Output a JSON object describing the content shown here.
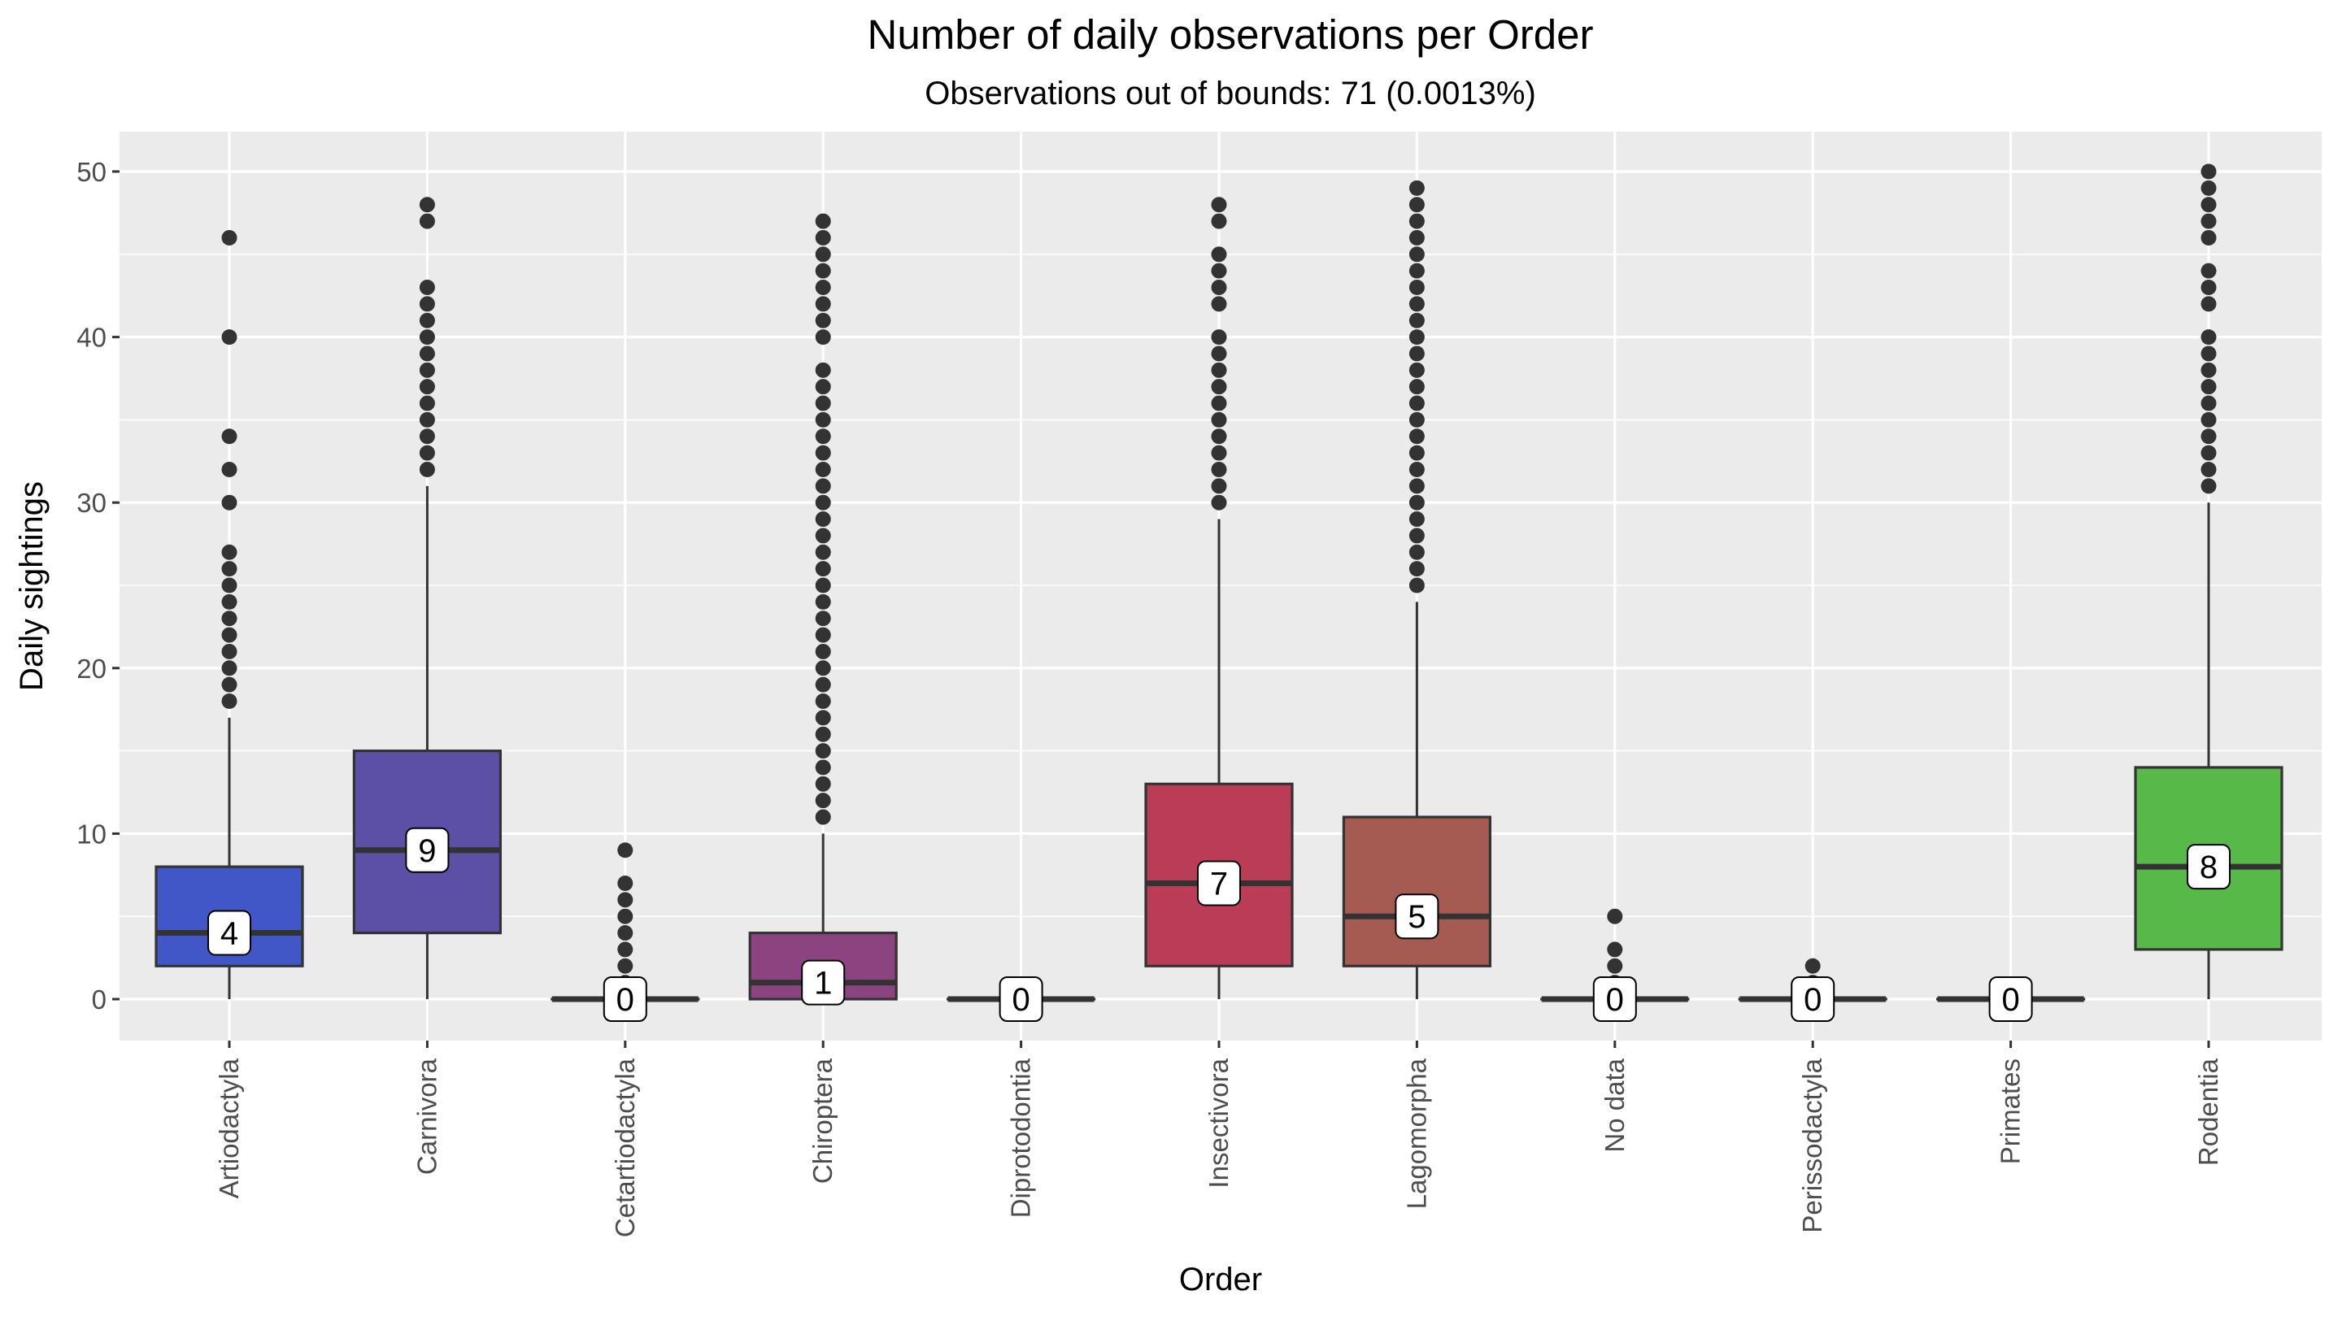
{
  "chart_data": {
    "type": "boxplot",
    "title": "Number of daily observations per Order",
    "subtitle": "Observations out of bounds: 71 (0.0013%)",
    "xlabel": "Order",
    "ylabel": "Daily sightings",
    "ylim": [
      -2.5,
      52
    ],
    "yticks": [
      0,
      10,
      20,
      30,
      40,
      50
    ],
    "grid": true,
    "legend": "none",
    "panel_background": "#ebebeb",
    "grid_color": "#ffffff",
    "categories": [
      "Artiodactyla",
      "Carnivora",
      "Cetartiodactyla",
      "Chiroptera",
      "Diprotodontia",
      "Insectivora",
      "Lagomorpha",
      "No data",
      "Perissodactyla",
      "Primates",
      "Rodentia"
    ],
    "boxes": [
      {
        "category": "Artiodactyla",
        "color": "#4257c7",
        "q1": 2,
        "median": 4,
        "q3": 8,
        "whisker_low": 0,
        "whisker_high": 17,
        "median_label": "4",
        "outliers": [
          18,
          19,
          20,
          21,
          22,
          23,
          24,
          25,
          26,
          27,
          30,
          32,
          34,
          40,
          46
        ]
      },
      {
        "category": "Carnivora",
        "color": "#5b4fa6",
        "q1": 4,
        "median": 9,
        "q3": 15,
        "whisker_low": 0,
        "whisker_high": 31,
        "median_label": "9",
        "outliers": [
          32,
          33,
          34,
          35,
          36,
          37,
          38,
          39,
          40,
          41,
          42,
          43,
          47,
          48
        ]
      },
      {
        "category": "Cetartiodactyla",
        "color": "#6f4c95",
        "q1": 0,
        "median": 0,
        "q3": 0,
        "whisker_low": 0,
        "whisker_high": 0,
        "median_label": "0",
        "outliers": [
          1,
          2,
          3,
          4,
          5,
          6,
          7,
          9
        ]
      },
      {
        "category": "Chiroptera",
        "color": "#8c4480",
        "q1": 0,
        "median": 1,
        "q3": 4,
        "whisker_low": 0,
        "whisker_high": 10,
        "median_label": "1",
        "outliers": [
          11,
          12,
          13,
          14,
          15,
          16,
          17,
          18,
          19,
          20,
          21,
          22,
          23,
          24,
          25,
          26,
          27,
          28,
          29,
          30,
          31,
          32,
          33,
          34,
          35,
          36,
          37,
          38,
          40,
          41,
          42,
          43,
          44,
          45,
          46,
          47
        ]
      },
      {
        "category": "Diprotodontia",
        "color": "#a1416c",
        "q1": 0,
        "median": 0,
        "q3": 0,
        "whisker_low": 0,
        "whisker_high": 0,
        "median_label": "0",
        "outliers": []
      },
      {
        "category": "Insectivora",
        "color": "#bb3c57",
        "q1": 2,
        "median": 7,
        "q3": 13,
        "whisker_low": 0,
        "whisker_high": 29,
        "median_label": "7",
        "outliers": [
          30,
          31,
          32,
          33,
          34,
          35,
          36,
          37,
          38,
          39,
          40,
          42,
          43,
          44,
          45,
          47,
          48
        ]
      },
      {
        "category": "Lagomorpha",
        "color": "#a65b52",
        "q1": 2,
        "median": 5,
        "q3": 11,
        "whisker_low": 0,
        "whisker_high": 24,
        "median_label": "5",
        "outliers": [
          25,
          26,
          27,
          28,
          29,
          30,
          31,
          32,
          33,
          34,
          35,
          36,
          37,
          38,
          39,
          40,
          41,
          42,
          43,
          44,
          45,
          46,
          47,
          48,
          49
        ]
      },
      {
        "category": "No data",
        "color": "#6e7a4a",
        "q1": 0,
        "median": 0,
        "q3": 0,
        "whisker_low": 0,
        "whisker_high": 0,
        "median_label": "0",
        "outliers": [
          1,
          2,
          3,
          5
        ]
      },
      {
        "category": "Perissodactyla",
        "color": "#7c8e45",
        "q1": 0,
        "median": 0,
        "q3": 0,
        "whisker_low": 0,
        "whisker_high": 0,
        "median_label": "0",
        "outliers": [
          1,
          2
        ]
      },
      {
        "category": "Primates",
        "color": "#8ba243",
        "q1": 0,
        "median": 0,
        "q3": 0,
        "whisker_low": 0,
        "whisker_high": 0,
        "median_label": "0",
        "outliers": []
      },
      {
        "category": "Rodentia",
        "color": "#57b948",
        "q1": 3,
        "median": 8,
        "q3": 14,
        "whisker_low": 0,
        "whisker_high": 30,
        "median_label": "8",
        "outliers": [
          31,
          32,
          33,
          34,
          35,
          36,
          37,
          38,
          39,
          40,
          42,
          43,
          44,
          46,
          47,
          48,
          49,
          50
        ]
      }
    ]
  }
}
